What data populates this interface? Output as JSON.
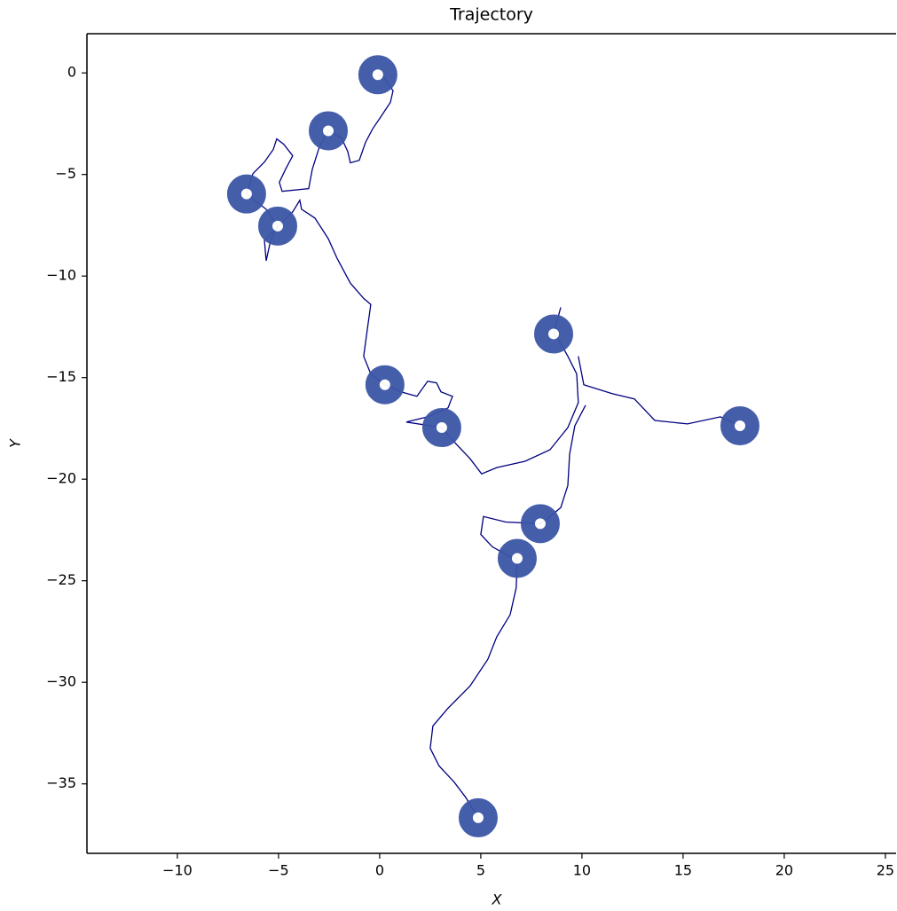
{
  "chart_data": {
    "type": "line",
    "title": "Trajectory",
    "xlabel": "X",
    "ylabel": "Y",
    "xlim": [
      -14.47,
      25.53
    ],
    "ylim": [
      -38.42,
      1.93
    ],
    "xticks": [
      {
        "value": -10,
        "label": "−10"
      },
      {
        "value": -5,
        "label": "−5"
      },
      0,
      5,
      10,
      15,
      20,
      25
    ],
    "yticks": [
      0,
      {
        "value": -5,
        "label": "−5"
      },
      {
        "value": -10,
        "label": "−10"
      },
      {
        "value": -15,
        "label": "−15"
      },
      {
        "value": -20,
        "label": "−20"
      },
      {
        "value": -25,
        "label": "−25"
      },
      {
        "value": -30,
        "label": "−30"
      },
      {
        "value": -35,
        "label": "−35"
      }
    ],
    "series": [
      {
        "color": "#000080",
        "x": [
          -0.09,
          0.18,
          0.66,
          0.53,
          0.09,
          -0.35,
          -0.7,
          -1.01,
          -1.45,
          -1.58,
          -1.89,
          -2.54,
          -2.98,
          -3.33,
          -3.51,
          -4.82,
          -4.96,
          -4.65,
          -4.3,
          -4.74,
          -5.09,
          -5.26,
          -5.7,
          -6.27,
          -6.58,
          -5.61,
          -5.04,
          -5.39,
          -5.61,
          -5.7,
          -4.82,
          -4.3,
          -3.95,
          -3.86,
          -3.2,
          -2.54,
          -2.11,
          -1.45,
          -0.79,
          -0.44,
          -0.61,
          -0.79,
          -0.44,
          0.26,
          1.05,
          1.84,
          2.37,
          2.81,
          3.03,
          3.6,
          3.38,
          2.37,
          1.32,
          3.07,
          3.68,
          4.47,
          5.04,
          5.79,
          7.19,
          8.42,
          9.3,
          9.82,
          9.74,
          9.3,
          8.86,
          8.6,
          8.95,
          null,
          9.82,
          10.09,
          11.49,
          12.59,
          13.6,
          15.22,
          16.84,
          17.81,
          null,
          10.18,
          9.65,
          9.39,
          9.3,
          8.95,
          8.42,
          7.94,
          6.23,
          5.13,
          5.0,
          5.57,
          6.45,
          6.8,
          6.75,
          6.45,
          5.79,
          5.35,
          4.47,
          3.38,
          2.63,
          2.5,
          2.94,
          3.68,
          4.25,
          4.87
        ],
        "y": [
          -0.09,
          -0.18,
          -0.88,
          -1.45,
          -2.11,
          -2.76,
          -3.42,
          -4.3,
          -4.43,
          -3.86,
          -3.2,
          -2.85,
          -3.64,
          -4.74,
          -5.7,
          -5.83,
          -5.39,
          -4.74,
          -4.08,
          -3.51,
          -3.25,
          -3.77,
          -4.39,
          -4.96,
          -5.96,
          -6.71,
          -7.54,
          -8.25,
          -9.25,
          -8.25,
          -7.37,
          -6.84,
          -6.27,
          -6.71,
          -7.15,
          -8.16,
          -9.12,
          -10.35,
          -11.1,
          -11.4,
          -12.63,
          -13.95,
          -14.82,
          -15.35,
          -15.7,
          -15.92,
          -15.18,
          -15.26,
          -15.7,
          -15.92,
          -16.49,
          -16.93,
          -17.19,
          -17.46,
          -18.16,
          -18.99,
          -19.74,
          -19.43,
          -19.12,
          -18.55,
          -17.46,
          -16.23,
          -14.82,
          -13.95,
          -13.16,
          -12.85,
          -11.54,
          null,
          -13.95,
          -15.35,
          -15.79,
          -16.05,
          -17.11,
          -17.28,
          -16.93,
          -17.37,
          null,
          -16.36,
          -17.37,
          -18.77,
          -20.31,
          -21.4,
          -21.84,
          -22.19,
          -22.11,
          -21.84,
          -22.72,
          -23.33,
          -23.82,
          -23.9,
          -25.35,
          -26.67,
          -27.76,
          -28.86,
          -30.18,
          -31.27,
          -32.15,
          -33.25,
          -34.12,
          -34.91,
          -35.66,
          -36.67
        ]
      }
    ],
    "markers": {
      "color": "#3c56a6",
      "x": [
        -0.09,
        -2.54,
        -6.58,
        -5.04,
        0.26,
        3.07,
        8.6,
        17.81,
        7.94,
        6.8,
        4.87
      ],
      "y": [
        -0.09,
        -2.85,
        -5.96,
        -7.54,
        -15.35,
        -17.46,
        -12.85,
        -17.37,
        -22.19,
        -23.9,
        -36.67
      ]
    }
  }
}
